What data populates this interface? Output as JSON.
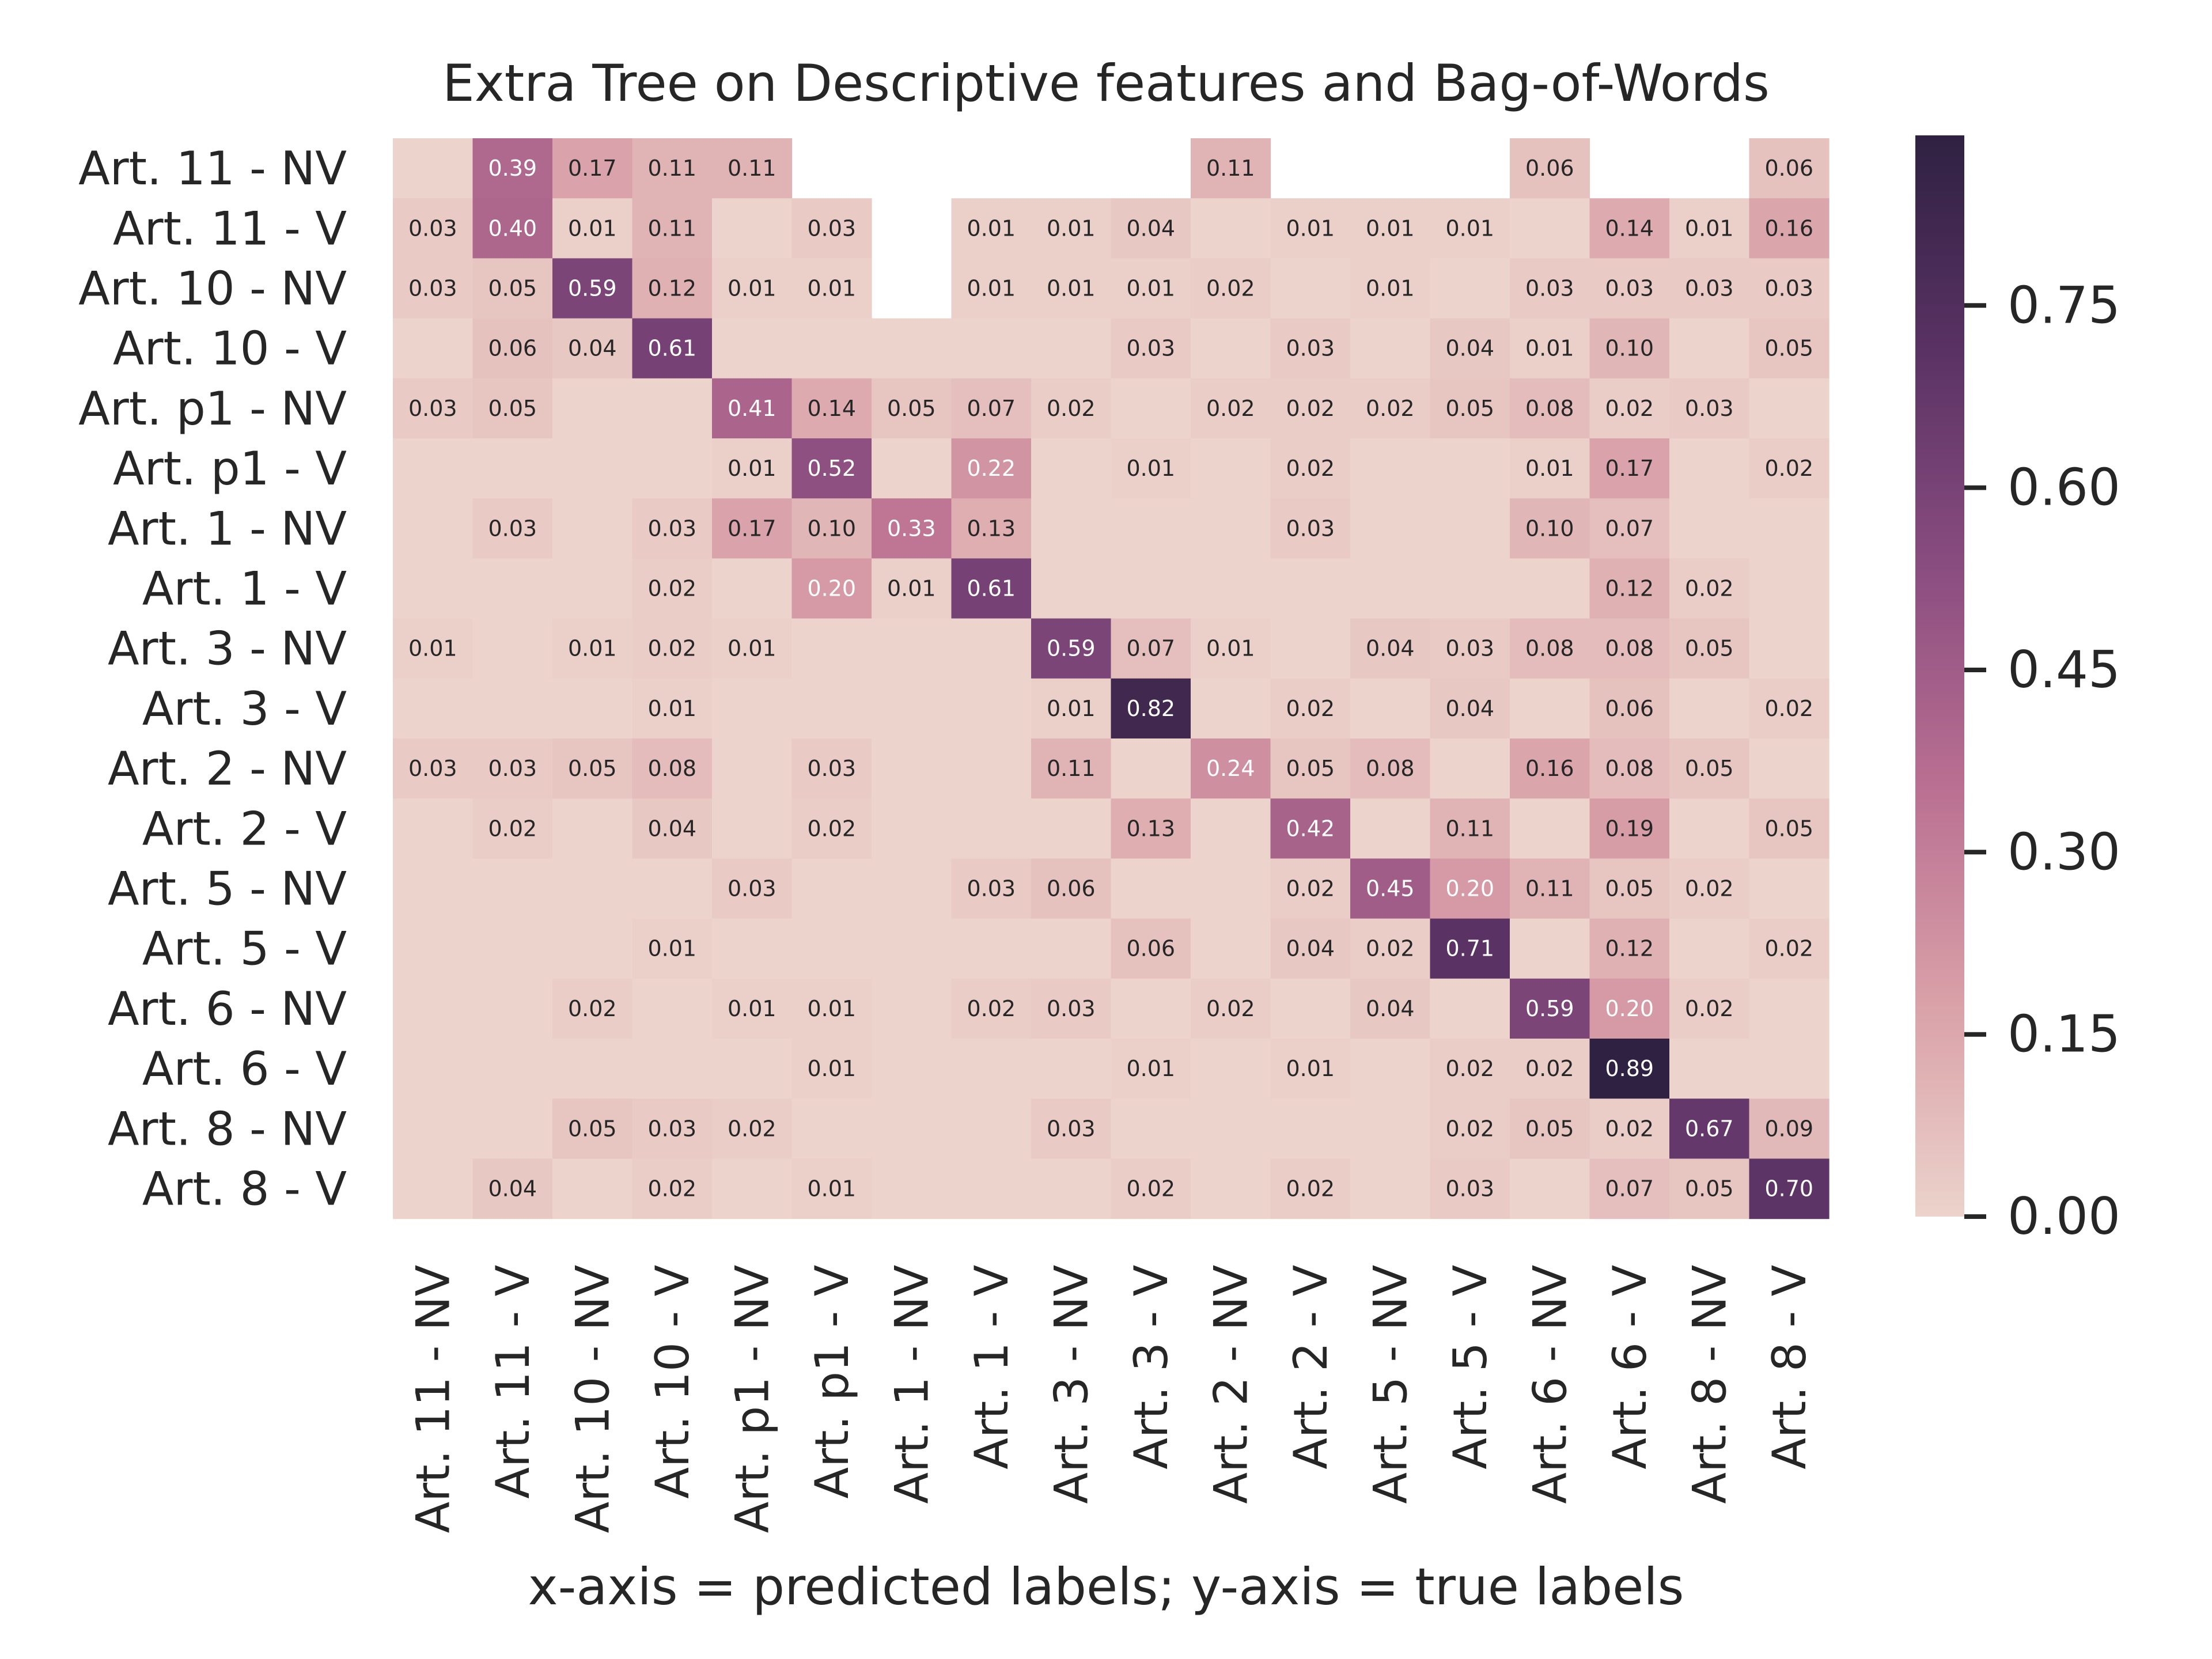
{
  "chart_data": {
    "type": "heatmap",
    "title": "Extra Tree on Descriptive features and Bag-of-Words",
    "xlabel": "x-axis = predicted labels; y-axis = true labels",
    "ylabel": "",
    "labels": [
      "Art. 11 - NV",
      "Art. 11 - V",
      "Art. 10 - NV",
      "Art. 10 - V",
      "Art. p1 - NV",
      "Art. p1 - V",
      "Art. 1 - NV",
      "Art. 1 - V",
      "Art. 3 - NV",
      "Art. 3 - V",
      "Art. 2 - NV",
      "Art. 2 - V",
      "Art. 5 - NV",
      "Art. 5 - V",
      "Art. 6 - NV",
      "Art. 6 - V",
      "Art. 8 - NV",
      "Art. 8 - V"
    ],
    "values": [
      [
        0,
        0.39,
        0.17,
        0.11,
        0.11,
        null,
        null,
        null,
        null,
        null,
        0.11,
        null,
        null,
        null,
        0.06,
        null,
        null,
        0.06
      ],
      [
        0.03,
        0.4,
        0.01,
        0.11,
        0,
        0.03,
        null,
        0.01,
        0.01,
        0.04,
        0,
        0.01,
        0.01,
        0.01,
        0,
        0.14,
        0.01,
        0.16
      ],
      [
        0.03,
        0.05,
        0.59,
        0.12,
        0.01,
        0.01,
        null,
        0.01,
        0.01,
        0.01,
        0.02,
        0,
        0.01,
        0,
        0.03,
        0.03,
        0.03,
        0.03
      ],
      [
        0,
        0.06,
        0.04,
        0.61,
        0.0,
        0.0,
        0.0,
        0.0,
        0,
        0.03,
        0,
        0.03,
        0.0,
        0.04,
        0.01,
        0.1,
        0.0,
        0.05
      ],
      [
        0.03,
        0.05,
        0,
        0,
        0.41,
        0.14,
        0.05,
        0.07,
        0.02,
        0,
        0.02,
        0.02,
        0.02,
        0.05,
        0.08,
        0.02,
        0.03,
        0
      ],
      [
        0,
        0,
        0,
        0.0,
        0.01,
        0.52,
        0.0,
        0.22,
        0,
        0.01,
        0,
        0.02,
        0,
        0.0,
        0.01,
        0.17,
        0,
        0.02
      ],
      [
        0,
        0.03,
        0,
        0.03,
        0.17,
        0.1,
        0.33,
        0.13,
        0,
        0,
        0,
        0.03,
        0,
        0,
        0.1,
        0.07,
        0,
        0
      ],
      [
        0,
        0,
        0.0,
        0.02,
        0,
        0.2,
        0.01,
        0.61,
        0,
        0,
        0,
        0.0,
        0,
        0.0,
        0,
        0.12,
        0.02,
        0.0
      ],
      [
        0.01,
        0,
        0.01,
        0.02,
        0.01,
        0,
        0,
        0,
        0.59,
        0.07,
        0.01,
        0,
        0.04,
        0.03,
        0.08,
        0.08,
        0.05,
        0
      ],
      [
        0,
        0.0,
        0,
        0.01,
        0,
        0.0,
        0,
        0.0,
        0.01,
        0.82,
        0.0,
        0.02,
        0,
        0.04,
        0,
        0.06,
        0.0,
        0.02
      ],
      [
        0.03,
        0.03,
        0.05,
        0.08,
        0,
        0.03,
        0,
        0,
        0.11,
        0,
        0.24,
        0.05,
        0.08,
        0,
        0.16,
        0.08,
        0.05,
        0
      ],
      [
        0,
        0.02,
        0.0,
        0.04,
        0,
        0.02,
        0,
        0.0,
        0,
        0.13,
        0.0,
        0.42,
        0,
        0.11,
        0,
        0.19,
        0.0,
        0.05
      ],
      [
        0,
        0,
        0.0,
        0,
        0.03,
        0.0,
        0,
        0.03,
        0.06,
        0.0,
        0,
        0.02,
        0.45,
        0.2,
        0.11,
        0.05,
        0.02,
        0.0
      ],
      [
        0,
        0.0,
        0,
        0.01,
        0,
        0.0,
        0,
        0.0,
        0.0,
        0.06,
        0,
        0.04,
        0.02,
        0.71,
        0.0,
        0.12,
        0,
        0.02
      ],
      [
        0.0,
        0,
        0.02,
        0.0,
        0.01,
        0.01,
        0.0,
        0.02,
        0.03,
        0.0,
        0.02,
        0.0,
        0.04,
        0.0,
        0.59,
        0.2,
        0.02,
        0.0
      ],
      [
        0.0,
        0.0,
        0.0,
        0.0,
        0.0,
        0.01,
        0.0,
        0.0,
        0.0,
        0.01,
        0.0,
        0.01,
        0.0,
        0.02,
        0.02,
        0.89,
        0.0,
        0.0
      ],
      [
        0,
        0,
        0.05,
        0.03,
        0.02,
        0,
        0,
        0.0,
        0.03,
        0,
        0,
        0,
        0.0,
        0.02,
        0.05,
        0.02,
        0.67,
        0.09
      ],
      [
        0.0,
        0.04,
        0.0,
        0.02,
        0.0,
        0.01,
        0,
        0.0,
        0.0,
        0.02,
        0,
        0.02,
        0.0,
        0.03,
        0.0,
        0.07,
        0.05,
        0.7
      ]
    ],
    "colorbar": {
      "ticks": [
        "0.00",
        "0.15",
        "0.30",
        "0.45",
        "0.60",
        "0.75"
      ],
      "range": [
        0,
        0.89
      ],
      "colors": [
        "#ecd3cb",
        "#d9a0a8",
        "#b96f91",
        "#8a4d80",
        "#5a3264",
        "#2f2142"
      ]
    },
    "grid": false,
    "legend": "colorbar-right"
  }
}
